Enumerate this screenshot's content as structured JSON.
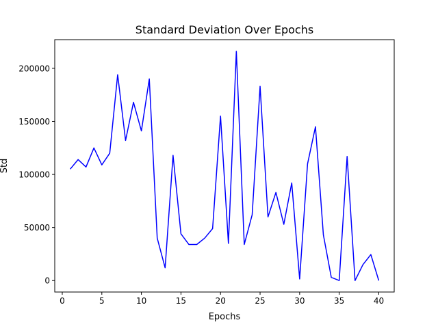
{
  "chart_data": {
    "type": "line",
    "title": "Standard Deviation Over Epochs",
    "xlabel": "Epochs",
    "ylabel": "Std",
    "xlim": [
      -0.95,
      41.95
    ],
    "ylim": [
      -10800,
      227000
    ],
    "xticks": [
      0,
      5,
      10,
      15,
      20,
      25,
      30,
      35,
      40
    ],
    "xtick_labels": [
      "0",
      "5",
      "10",
      "15",
      "20",
      "25",
      "30",
      "35",
      "40"
    ],
    "yticks": [
      0,
      50000,
      100000,
      150000,
      200000
    ],
    "ytick_labels": [
      "0",
      "50000",
      "100000",
      "150000",
      "200000"
    ],
    "grid": false,
    "legend": false,
    "line_color": "#0000ff",
    "series": [
      {
        "x": [
          1,
          2,
          3,
          4,
          5,
          6,
          7,
          8,
          9,
          10,
          11,
          12,
          13,
          14,
          15,
          16,
          17,
          18,
          19,
          20,
          21,
          22,
          23,
          24,
          25,
          26,
          27,
          28,
          29,
          30,
          31,
          32,
          33,
          34,
          35,
          36,
          37,
          38,
          39,
          40
        ],
        "values": [
          105000,
          114000,
          107000,
          125000,
          109000,
          120000,
          194000,
          132000,
          168000,
          141000,
          190000,
          40000,
          12000,
          118000,
          44000,
          34000,
          34000,
          40000,
          49000,
          155000,
          35000,
          216000,
          34000,
          62000,
          183000,
          60000,
          83000,
          53000,
          92000,
          1500,
          110000,
          145000,
          43000,
          3000,
          0,
          117000,
          0,
          15000,
          24500,
          0
        ]
      }
    ]
  }
}
